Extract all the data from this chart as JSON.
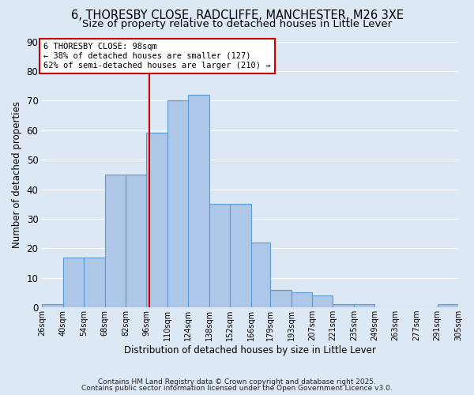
{
  "title1": "6, THORESBY CLOSE, RADCLIFFE, MANCHESTER, M26 3XE",
  "title2": "Size of property relative to detached houses in Little Lever",
  "xlabel": "Distribution of detached houses by size in Little Lever",
  "ylabel": "Number of detached properties",
  "bin_edges": [
    26,
    40,
    54,
    68,
    82,
    96,
    110,
    124,
    138,
    152,
    166,
    179,
    193,
    207,
    221,
    235,
    249,
    263,
    277,
    291,
    305
  ],
  "counts": [
    1,
    17,
    17,
    45,
    45,
    59,
    70,
    72,
    35,
    35,
    22,
    6,
    5,
    4,
    1,
    1,
    0,
    0,
    0,
    1
  ],
  "bar_color": "#aec6e8",
  "bar_edgecolor": "#5b9bd5",
  "property_size": 98,
  "vline_color": "#cc0000",
  "annotation_text": "6 THORESBY CLOSE: 98sqm\n← 38% of detached houses are smaller (127)\n62% of semi-detached houses are larger (210) →",
  "annotation_box_edgecolor": "#cc0000",
  "annotation_box_facecolor": "#ffffff",
  "ylim": [
    0,
    90
  ],
  "yticks": [
    0,
    10,
    20,
    30,
    40,
    50,
    60,
    70,
    80,
    90
  ],
  "background_color": "#dde8f5",
  "grid_color": "#ffffff",
  "footer1": "Contains HM Land Registry data © Crown copyright and database right 2025.",
  "footer2": "Contains public sector information licensed under the Open Government Licence v3.0.",
  "tick_label_fontsize": 7,
  "ylabel_fontsize": 8.5,
  "xlabel_fontsize": 8.5,
  "title1_fontsize": 10.5,
  "title2_fontsize": 9.5,
  "annotation_fontsize": 7.5,
  "footer_fontsize": 6.5
}
